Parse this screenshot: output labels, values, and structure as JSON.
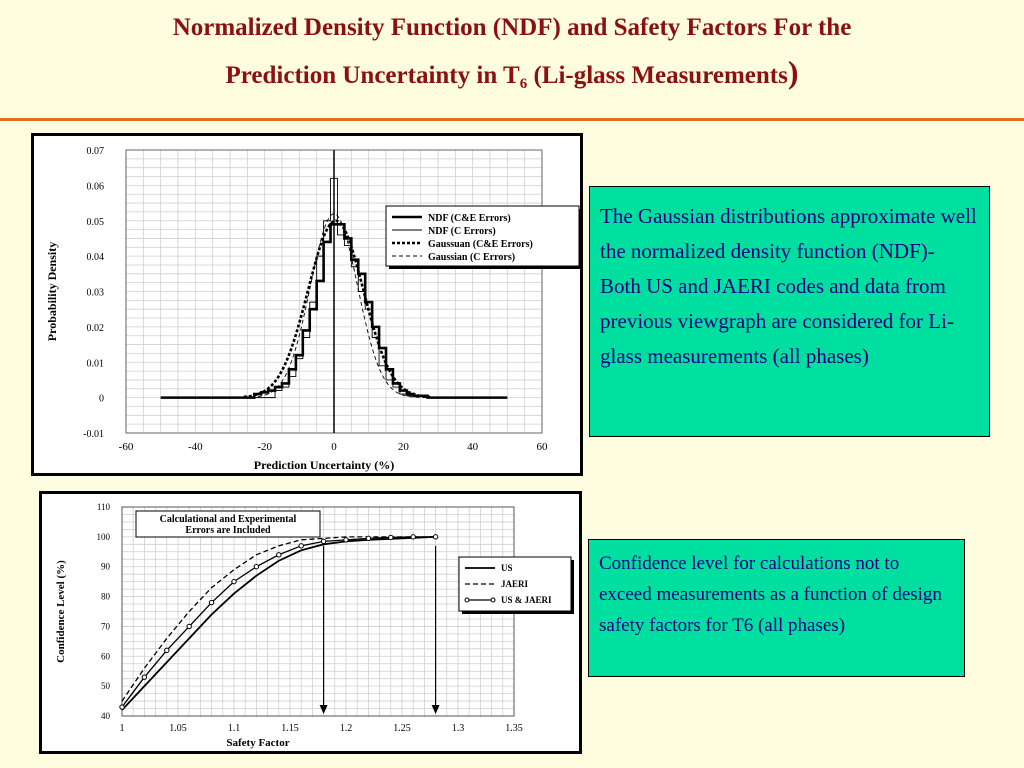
{
  "slide": {
    "title_part1": "Normalized Density Function (NDF) and Safety Factors For the",
    "title_part2": "Prediction Uncertainty in T",
    "title_sub": "6",
    "title_part3": " (Li-glass Measurements",
    "title_close": ")"
  },
  "note_top": "The Gaussian distributions approximate well the normalized density function (NDF)- Both US and JAERI codes and data from previous viewgraph are considered for Li-glass measurements  (all phases)",
  "note_bottom": "Confidence level for calculations not to exceed measurements as a function of design safety factors for T6 (all phases)",
  "colors": {
    "title": "#8b1010",
    "rule": "#e07020",
    "note_bg": "#00df9f",
    "note_text": "#000080",
    "background": "#fffde0"
  },
  "chart_data": [
    {
      "type": "line",
      "xlabel": "Prediction  Uncertainty  (%)",
      "ylabel": "Probability  Density",
      "xlim": [
        -60,
        60
      ],
      "ylim": [
        -0.01,
        0.07
      ],
      "x_ticks": [
        "-60",
        "-40",
        "-20",
        "0",
        "20",
        "40",
        "60"
      ],
      "y_ticks": [
        "0.07",
        "0.06",
        "0.05",
        "0.04",
        "0.03",
        "0.02",
        "0.01",
        "0",
        "-0.01"
      ],
      "grid": true,
      "legend_position": "top-right",
      "series": [
        {
          "name": "NDF  (C&E  Errors)",
          "style": "step-thick",
          "x": [
            -50,
            -25,
            -23,
            -21,
            -19,
            -17,
            -15,
            -13,
            -11,
            -9,
            -7,
            -5,
            -3,
            -1,
            1,
            3,
            5,
            7,
            9,
            11,
            13,
            15,
            17,
            19,
            21,
            23,
            27,
            50
          ],
          "y": [
            0,
            0,
            0.001,
            0.0015,
            0.002,
            0.003,
            0.004,
            0.008,
            0.012,
            0.019,
            0.025,
            0.033,
            0.044,
            0.049,
            0.049,
            0.045,
            0.039,
            0.035,
            0.027,
            0.02,
            0.014,
            0.008,
            0.004,
            0.002,
            0.001,
            0.0005,
            0,
            0
          ]
        },
        {
          "name": "NDF  (C  Errors)",
          "style": "step-thin",
          "x": [
            -25,
            -17,
            -15,
            -13,
            -11,
            -9,
            -7,
            -5,
            -3,
            -1,
            1,
            3,
            5,
            7,
            9,
            11,
            13,
            15,
            17,
            19,
            21,
            27
          ],
          "y": [
            0,
            0.002,
            0.003,
            0.006,
            0.011,
            0.017,
            0.027,
            0.04,
            0.05,
            0.062,
            0.046,
            0.043,
            0.037,
            0.03,
            0.025,
            0.017,
            0.009,
            0.005,
            0.003,
            0.001,
            0.0005,
            0
          ]
        },
        {
          "name": "Gaussuan  (C&E  Errors)",
          "style": "dashed-thick",
          "mean": 0.5,
          "sigma": 8.0,
          "peak": 0.05
        },
        {
          "name": "Gaussian  (C  Errors)",
          "style": "dashed-thin",
          "mean": 0,
          "sigma": 6.8,
          "peak": 0.052
        }
      ]
    },
    {
      "type": "line",
      "xlabel": "Safety  Factor",
      "ylabel": "Confidence  Level  (%)",
      "xlim": [
        1,
        1.35
      ],
      "ylim": [
        40,
        110
      ],
      "x_ticks": [
        "1",
        "1.05",
        "1.1",
        "1.15",
        "1.2",
        "1.25",
        "1.3",
        "1.35"
      ],
      "y_ticks": [
        "110",
        "100",
        "90",
        "80",
        "70",
        "60",
        "50",
        "40"
      ],
      "grid": true,
      "annotation": [
        "Calculational  and  Experimental",
        "Errors  are  Included"
      ],
      "arrows_at_x": [
        1.18,
        1.28
      ],
      "legend_position": "right",
      "series": [
        {
          "name": "US",
          "style": "solid",
          "x": [
            1.0,
            1.02,
            1.04,
            1.06,
            1.08,
            1.1,
            1.12,
            1.14,
            1.16,
            1.18,
            1.2,
            1.22,
            1.25,
            1.28
          ],
          "y": [
            42,
            50,
            58,
            66,
            74,
            81,
            87,
            92,
            95.5,
            97.5,
            98.5,
            99,
            99.5,
            100
          ]
        },
        {
          "name": "JAERI",
          "style": "dashed",
          "x": [
            1.0,
            1.02,
            1.04,
            1.06,
            1.08,
            1.1,
            1.12,
            1.14,
            1.16,
            1.18,
            1.2,
            1.22,
            1.25,
            1.28
          ],
          "y": [
            45,
            56,
            66,
            75,
            83,
            89,
            94,
            97,
            99,
            99.5,
            100,
            100,
            100,
            100
          ]
        },
        {
          "name": "US  &  JAERI",
          "style": "solid-markers",
          "x": [
            1.0,
            1.02,
            1.04,
            1.06,
            1.08,
            1.1,
            1.12,
            1.14,
            1.16,
            1.18,
            1.2,
            1.22,
            1.24,
            1.26,
            1.28
          ],
          "y": [
            43,
            53,
            62,
            70,
            78,
            85,
            90,
            94,
            97,
            98.5,
            99,
            99.5,
            99.8,
            100,
            100
          ]
        }
      ]
    }
  ]
}
